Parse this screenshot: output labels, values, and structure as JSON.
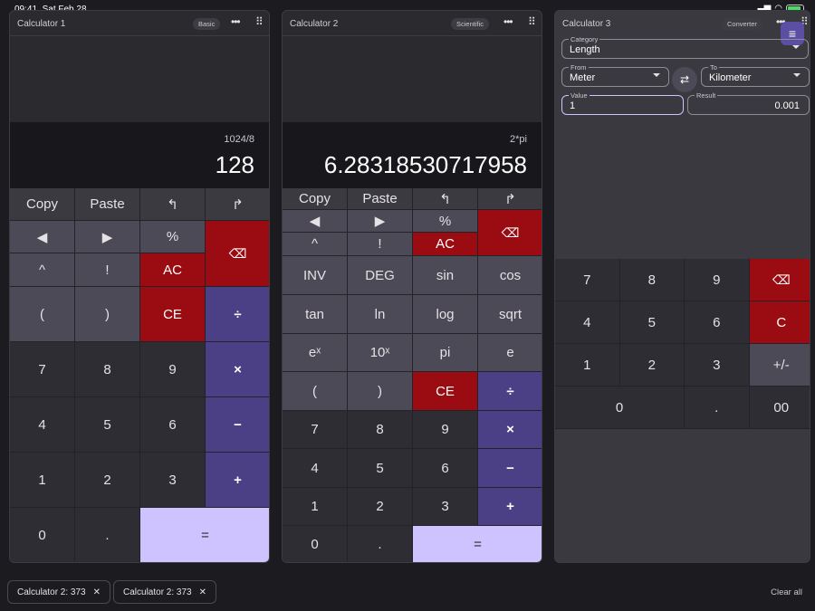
{
  "status": {
    "time": "09:41",
    "date": "Sat Feb 28"
  },
  "calc1": {
    "title": "Calculator 1",
    "mode": "Basic",
    "expression": "1024/8",
    "result": "128",
    "keys": [
      "Copy",
      "Paste",
      "↰",
      "↱",
      "◀",
      "▶",
      "%",
      "⌫",
      "^",
      "!",
      "AC",
      "(",
      ")",
      "CE",
      "÷",
      "7",
      "8",
      "9",
      "×",
      "4",
      "5",
      "6",
      "−",
      "1",
      "2",
      "3",
      "+",
      "0",
      ".",
      "="
    ]
  },
  "calc2": {
    "title": "Calculator 2",
    "mode": "Scientific",
    "expression": "2*pi",
    "result": "6.28318530717958",
    "keys": [
      "Copy",
      "Paste",
      "↰",
      "↱",
      "◀",
      "▶",
      "%",
      "⌫",
      "^",
      "!",
      "AC",
      "INV",
      "DEG",
      "sin",
      "cos",
      "tan",
      "ln",
      "log",
      "sqrt",
      "eˣ",
      "10ˣ",
      "pi",
      "e",
      "(",
      ")",
      "CE",
      "÷",
      "7",
      "8",
      "9",
      "×",
      "4",
      "5",
      "6",
      "−",
      "1",
      "2",
      "3",
      "+",
      "0",
      ".",
      "="
    ]
  },
  "calc3": {
    "title": "Calculator 3",
    "mode": "Converter",
    "category_label": "Category",
    "category": "Length",
    "from_label": "From",
    "from": "Meter",
    "to_label": "To",
    "to": "Kilometer",
    "value_label": "Value",
    "value": "1",
    "result_label": "Result",
    "result": "0.001",
    "keys": [
      "7",
      "8",
      "9",
      "⌫",
      "4",
      "5",
      "6",
      "C",
      "1",
      "2",
      "3",
      "+/-",
      "0",
      ".",
      "00"
    ]
  },
  "tray": {
    "chips": [
      "Calculator 2: 373",
      "Calculator 2: 373"
    ],
    "clear_all": "Clear all"
  },
  "icons": {
    "more": "more-dots-icon",
    "drag": "drag-grid-icon",
    "close": "close-icon",
    "menu": "menu-icon",
    "swap": "swap-icon",
    "backspace": "backspace-icon"
  }
}
